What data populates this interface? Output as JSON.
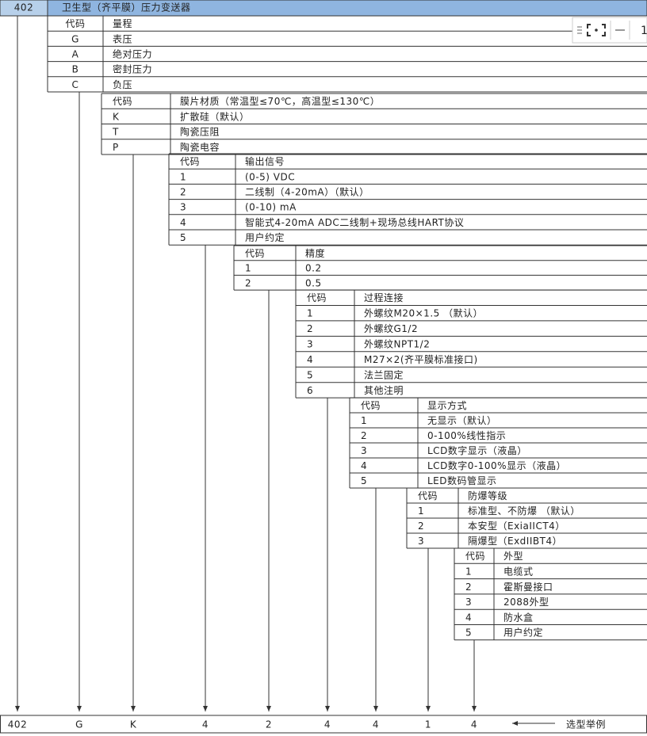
{
  "header": {
    "code": "402",
    "title": "卫生型（齐平膜）压力变送器"
  },
  "toolbar": {
    "page": "1"
  },
  "sections": [
    {
      "rows": [
        [
          "代码",
          "量程"
        ],
        [
          "G",
          "表压"
        ],
        [
          "A",
          "绝对压力"
        ],
        [
          "B",
          "密封压力"
        ],
        [
          "C",
          "负压"
        ]
      ]
    },
    {
      "rows": [
        [
          "代码",
          "膜片材质（常温型≤70℃，高温型≤130℃）"
        ],
        [
          "K",
          "扩散硅（默认）"
        ],
        [
          "T",
          "陶瓷压阻"
        ],
        [
          "P",
          "陶瓷电容"
        ]
      ]
    },
    {
      "rows": [
        [
          "代码",
          "输出信号"
        ],
        [
          "1",
          "(0-5) VDC"
        ],
        [
          "2",
          "二线制（4-20mA）（默认）"
        ],
        [
          "3",
          "(0-10) mA"
        ],
        [
          "4",
          "智能式4-20mA ADC二线制+现场总线HART协议"
        ],
        [
          "5",
          "用户约定"
        ]
      ]
    },
    {
      "rows": [
        [
          "代码",
          "精度"
        ],
        [
          "1",
          "0.2"
        ],
        [
          "2",
          "0.5"
        ]
      ]
    },
    {
      "rows": [
        [
          "代码",
          "过程连接"
        ],
        [
          "1",
          "外螺纹M20×1.5 （默认）"
        ],
        [
          "2",
          "外螺纹G1/2"
        ],
        [
          "3",
          "外螺纹NPT1/2"
        ],
        [
          "4",
          "M27×2(齐平膜标准接口)"
        ],
        [
          "5",
          "法兰固定"
        ],
        [
          "6",
          "其他注明"
        ]
      ]
    },
    {
      "rows": [
        [
          "代码",
          "显示方式"
        ],
        [
          "1",
          "无显示（默认）"
        ],
        [
          "2",
          "0-100%线性指示"
        ],
        [
          "3",
          "LCD数字显示（液晶）"
        ],
        [
          "4",
          "LCD数字0-100%显示（液晶）"
        ],
        [
          "5",
          "LED数码管显示"
        ]
      ]
    },
    {
      "rows": [
        [
          "代码",
          "防爆等级"
        ],
        [
          "1",
          "标准型、不防爆 （默认）"
        ],
        [
          "2",
          "本安型（ExiaIICT4）"
        ],
        [
          "3",
          "隔爆型（ExdIIBT4）"
        ]
      ]
    },
    {
      "rows": [
        [
          "代码",
          "外型"
        ],
        [
          "1",
          "电缆式"
        ],
        [
          "2",
          "霍斯曼接口"
        ],
        [
          "3",
          "2088外型"
        ],
        [
          "4",
          "防水盒"
        ],
        [
          "5",
          "用户约定"
        ]
      ]
    }
  ],
  "example": {
    "codes": [
      "402",
      "G",
      "K",
      "4",
      "2",
      "4",
      "4",
      "1",
      "4"
    ],
    "label": "选型举例"
  }
}
